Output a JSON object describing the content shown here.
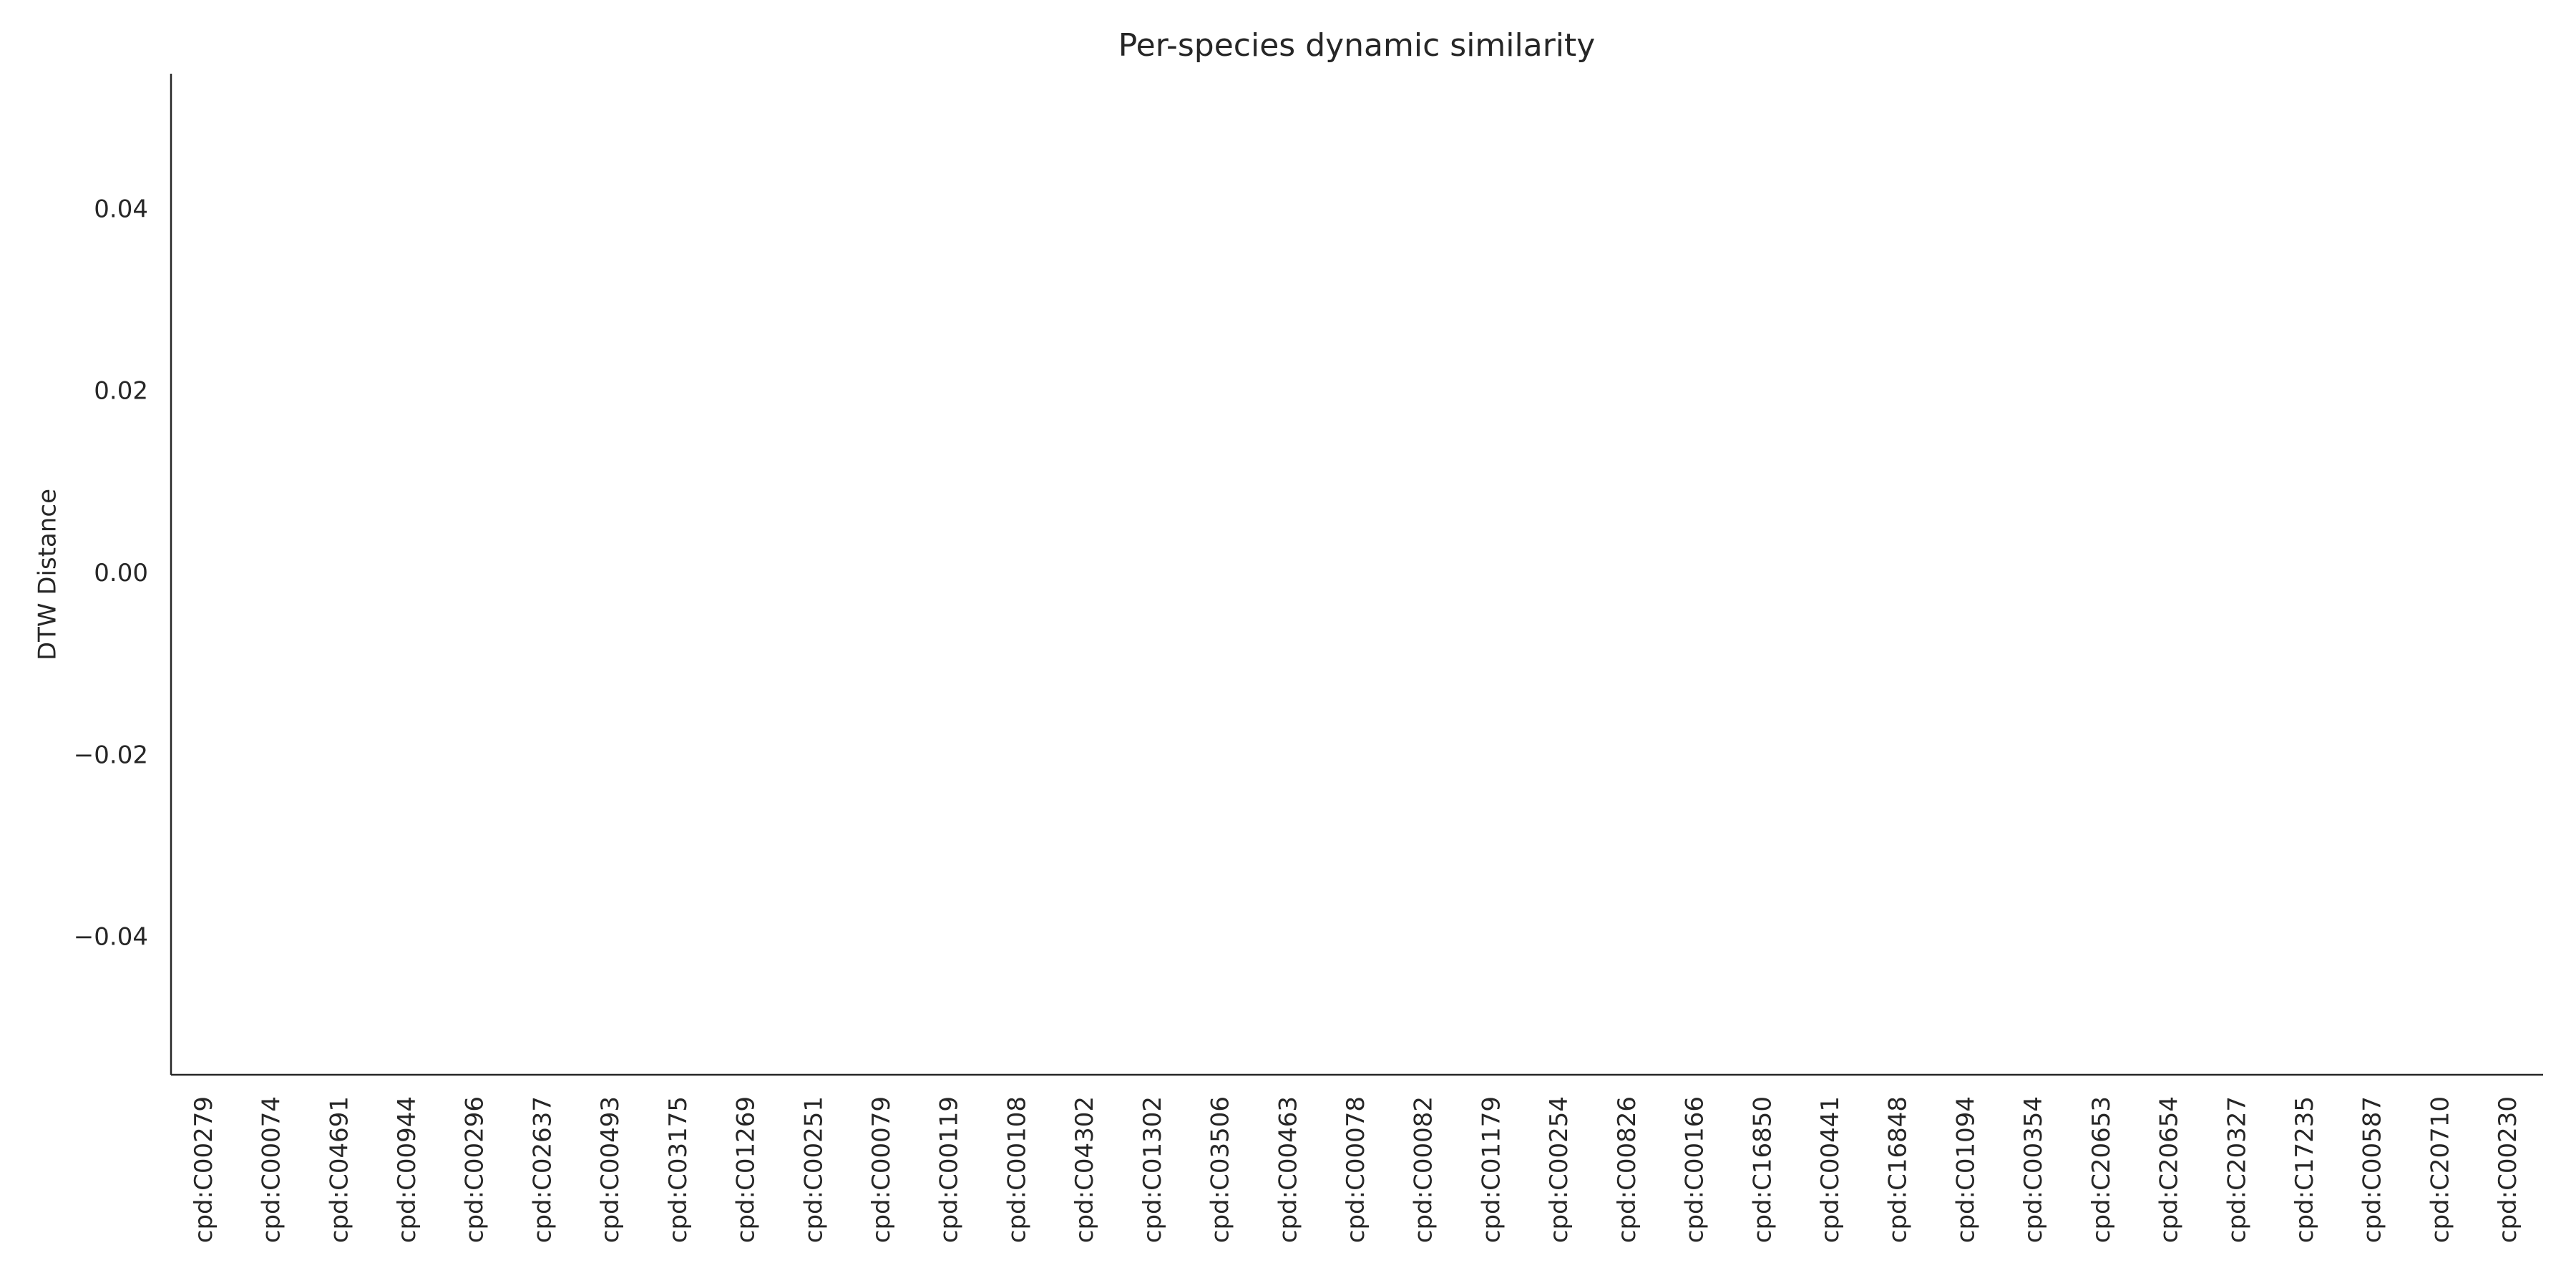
{
  "chart_data": {
    "type": "bar",
    "title": "Per-species dynamic similarity",
    "ylabel": "DTW Distance",
    "categories": [
      "cpd:C00279",
      "cpd:C00074",
      "cpd:C04691",
      "cpd:C00944",
      "cpd:C00296",
      "cpd:C02637",
      "cpd:C00493",
      "cpd:C03175",
      "cpd:C01269",
      "cpd:C00251",
      "cpd:C00079",
      "cpd:C00119",
      "cpd:C00108",
      "cpd:C04302",
      "cpd:C01302",
      "cpd:C03506",
      "cpd:C00463",
      "cpd:C00078",
      "cpd:C00082",
      "cpd:C01179",
      "cpd:C00254",
      "cpd:C00826",
      "cpd:C00166",
      "cpd:C16850",
      "cpd:C00441",
      "cpd:C16848",
      "cpd:C01094",
      "cpd:C00354",
      "cpd:C20653",
      "cpd:C20654",
      "cpd:C20327",
      "cpd:C17235",
      "cpd:C00587",
      "cpd:C20710",
      "cpd:C00230"
    ],
    "values": [
      0,
      0,
      0,
      0,
      0,
      0,
      0,
      0,
      0,
      0,
      0,
      0,
      0,
      0,
      0,
      0,
      0,
      0,
      0,
      0,
      0,
      0,
      0,
      0,
      0,
      0,
      0,
      0,
      0,
      0,
      0,
      0,
      0,
      0,
      0
    ],
    "color": "#4c72b0",
    "ylim": [
      -0.055,
      0.055
    ],
    "yticks": [
      {
        "value": -0.04,
        "label": "−0.04"
      },
      {
        "value": -0.02,
        "label": "−0.02"
      },
      {
        "value": 0,
        "label": "0.00"
      },
      0.02,
      0.04
    ],
    "grid": false
  }
}
